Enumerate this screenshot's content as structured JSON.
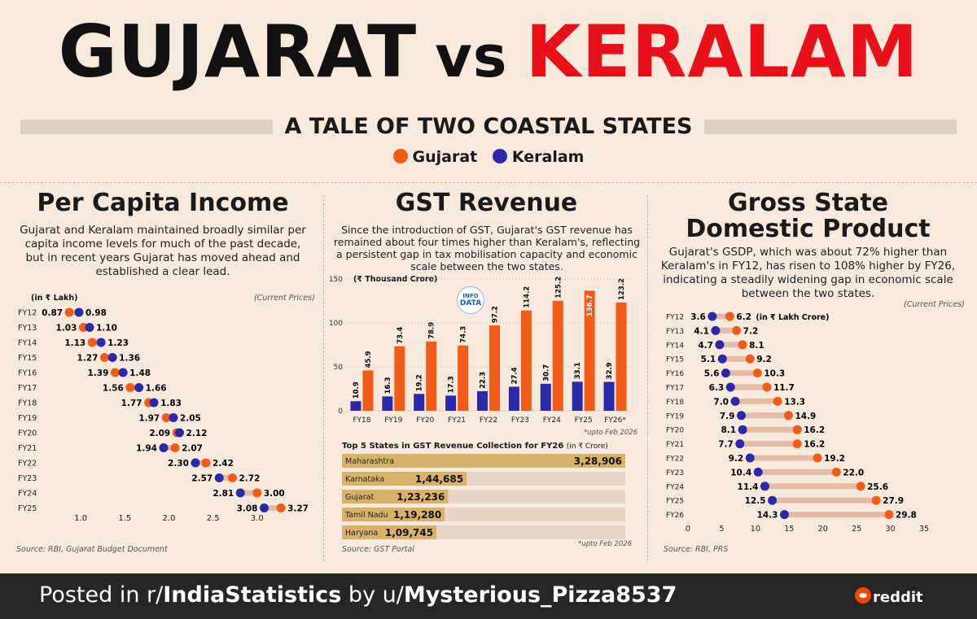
{
  "headline": {
    "left": "GUJARAT",
    "mid": "vs",
    "right": "KERALAM"
  },
  "subtitle": "A TALE OF TWO COASTAL STATES",
  "legend": [
    {
      "name": "Gujarat",
      "color": "#f25c19"
    },
    {
      "name": "Keralam",
      "color": "#2a2aa8"
    }
  ],
  "colors": {
    "gujarat": "#f25c19",
    "keralam": "#2a2aa8",
    "connector": "#e4bba7",
    "bar_gold": "#d9b26a",
    "bar_track": "#ead6c7"
  },
  "panel1": {
    "title": "Per Capita Income",
    "desc": "Gujarat and Keralam maintained broadly similar per capita income levels for much of the past decade, but in recent years Gujarat has moved ahead and established a clear lead.",
    "unit": "(in ₹ Lakh)",
    "note": "(Current Prices)",
    "source": "Source: RBI, Gujarat Budget Document"
  },
  "panel2": {
    "title": "GST Revenue",
    "desc": "Since the introduction of GST, Gujarat's GST revenue has remained about four times higher than Keralam's, reflecting a persistent gap in tax mobilisation capacity and economic scale between the two states.",
    "unit": "(₹ Thousand Crore)",
    "note1": "*upto Feb 2026",
    "top5_title": "Top 5 States in GST Revenue Collection for FY26",
    "top5_unit": "(in ₹ Crore)",
    "note2": "*upto Feb 2026",
    "source": "Source: GST Portal",
    "logo_top": "INFO",
    "logo_bottom": "DATA"
  },
  "panel3": {
    "title_line1": "Gross State",
    "title_line2": "Domestic Product",
    "desc": "Gujarat's GSDP, which was about 72% higher than Keralam's in FY12, has risen to 108% higher by FY26, indicating a steadily widening gap in economic scale between the two states.",
    "unit": "(in ₹ Lakh Crore)",
    "note": "(Current Prices)",
    "source": "Source: RBI, PRS"
  },
  "footer": {
    "prefix": "Posted in r/",
    "sub": "IndiaStatistics",
    "mid": " by u/",
    "user": "Mysterious_Pizza8537",
    "brand": "reddit"
  },
  "chart_data": [
    {
      "type": "scatter",
      "title": "Per Capita Income",
      "categories": [
        "FY12",
        "FY13",
        "FY14",
        "FY15",
        "FY16",
        "FY17",
        "FY18",
        "FY19",
        "FY20",
        "FY21",
        "FY22",
        "FY23",
        "FY24",
        "FY25"
      ],
      "series": [
        {
          "name": "Gujarat",
          "values": [
            0.87,
            1.03,
            1.13,
            1.27,
            1.39,
            1.56,
            1.77,
            1.97,
            2.09,
            2.07,
            2.42,
            2.72,
            3.0,
            3.27
          ]
        },
        {
          "name": "Keralam",
          "values": [
            0.98,
            1.1,
            1.23,
            1.36,
            1.48,
            1.66,
            1.83,
            2.05,
            2.12,
            1.94,
            2.3,
            2.57,
            2.81,
            3.08
          ]
        }
      ],
      "xlim": [
        0.5,
        3.5
      ],
      "xticks": [
        1.0,
        1.5,
        2.0,
        2.5,
        3.0
      ],
      "xtick_labels": [
        "1.0",
        "1.5",
        "2.0",
        "2.5",
        "3.0"
      ]
    },
    {
      "type": "bar",
      "title": "GST Revenue",
      "categories": [
        "FY18",
        "FY19",
        "FY20",
        "FY21",
        "FY22",
        "FY23",
        "FY24",
        "FY25",
        "FY26*"
      ],
      "series": [
        {
          "name": "Keralam",
          "values": [
            10.9,
            16.3,
            19.2,
            17.3,
            22.3,
            27.4,
            30.7,
            33.1,
            32.9
          ]
        },
        {
          "name": "Gujarat",
          "values": [
            45.9,
            73.4,
            78.9,
            74.3,
            97.2,
            114.2,
            125.2,
            136.7,
            123.2
          ]
        }
      ],
      "value_labels_keralam": [
        "10.9",
        "16.3",
        "19.2",
        "17.3",
        "22.3",
        "27.4",
        "30.7",
        "33.1",
        "32.9"
      ],
      "value_labels_gujarat": [
        "45.9",
        "73.4",
        "78.9",
        "74.3",
        "97.2",
        "114.2",
        "125.2",
        "136.7",
        "123.2"
      ],
      "ylim": [
        0,
        150
      ],
      "yticks": [
        0,
        50,
        100,
        150
      ],
      "ytick_labels": [
        "0",
        "50",
        "100",
        "150"
      ]
    },
    {
      "type": "bar",
      "title": "Top 5 States in GST Revenue Collection for FY26",
      "categories": [
        "Maharashtra",
        "Karnataka",
        "Gujarat",
        "Tamil Nadu",
        "Haryana"
      ],
      "values": [
        328906,
        144685,
        123236,
        119280,
        109745
      ],
      "value_labels": [
        "3,28,906",
        "1,44,685",
        "1,23,236",
        "1,19,280",
        "1,09,745"
      ]
    },
    {
      "type": "scatter",
      "title": "Gross State Domestic Product",
      "categories": [
        "FY12",
        "FY13",
        "FY14",
        "FY15",
        "FY16",
        "FY17",
        "FY18",
        "FY19",
        "FY20",
        "FY21",
        "FY22",
        "FY23",
        "FY24",
        "FY25",
        "FY26"
      ],
      "series": [
        {
          "name": "Keralam",
          "values": [
            3.6,
            4.1,
            4.7,
            5.1,
            5.6,
            6.3,
            7.0,
            7.9,
            8.1,
            7.7,
            9.2,
            10.4,
            11.4,
            12.5,
            14.3
          ]
        },
        {
          "name": "Gujarat",
          "values": [
            6.2,
            7.2,
            8.1,
            9.2,
            10.3,
            11.7,
            13.3,
            14.9,
            16.2,
            16.2,
            19.2,
            22.0,
            25.6,
            27.9,
            29.8
          ]
        }
      ],
      "xlim": [
        0,
        35
      ],
      "xticks": [
        0,
        5,
        10,
        15,
        20,
        25,
        30,
        35
      ],
      "xtick_labels": [
        "0",
        "5",
        "10",
        "15",
        "20",
        "25",
        "30",
        "35"
      ]
    }
  ]
}
